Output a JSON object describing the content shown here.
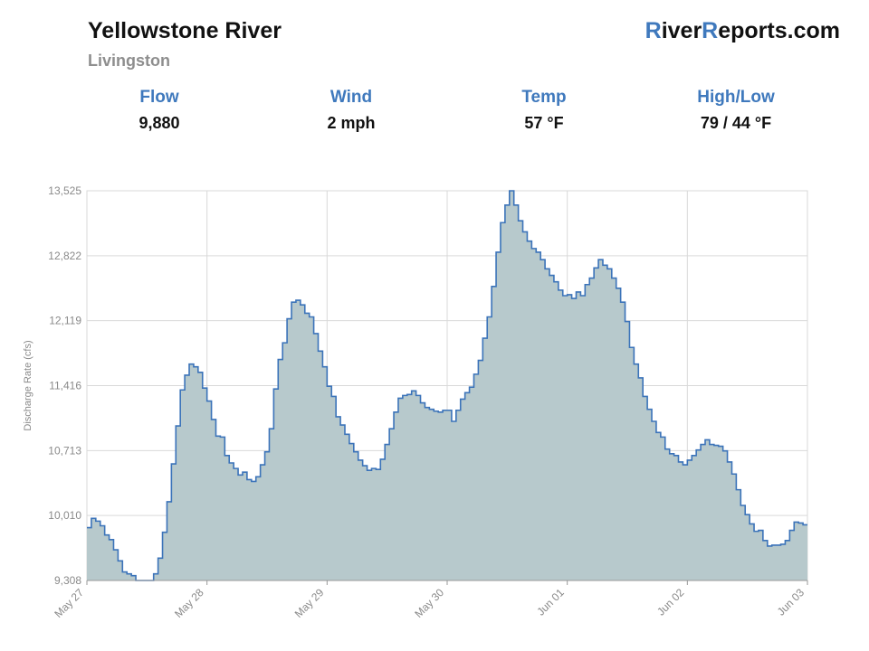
{
  "header": {
    "river": "Yellowstone River",
    "station": "Livingston",
    "brand_r1": "R",
    "brand_part1": "iver",
    "brand_r2": "R",
    "brand_part2": "eports.com"
  },
  "stats": [
    {
      "label": "Flow",
      "value": "9,880"
    },
    {
      "label": "Wind",
      "value": "2 mph"
    },
    {
      "label": "Temp",
      "value": "57 °F"
    },
    {
      "label": "High/Low",
      "value": "79 / 44 °F"
    }
  ],
  "colors": {
    "accent": "#3f79bd",
    "line": "#3b73b9",
    "fill": "#b7c9cc",
    "grid": "#d9d9d9",
    "axis_text": "#8a8a8a"
  },
  "chart_data": {
    "type": "area",
    "title": "",
    "xlabel": "",
    "ylabel": "Discharge Rate (cfs)",
    "step": true,
    "grid": true,
    "x_range": [
      "May 27",
      "Jun 03"
    ],
    "ylim": [
      9308,
      13525
    ],
    "y_ticks": [
      "9,308",
      "10,010",
      "10,713",
      "11,416",
      "12,119",
      "12,822",
      "13,525"
    ],
    "x_ticks": [
      "May 27",
      "May 28",
      "May 29",
      "May 30",
      "Jun 01",
      "Jun 02",
      "Jun 03"
    ],
    "series": [
      {
        "values": [
          9880,
          9980,
          9950,
          9900,
          9800,
          9750,
          9640,
          9520,
          9400,
          9380,
          9360,
          9308,
          9308,
          9308,
          9308,
          9380,
          9550,
          9830,
          10160,
          10570,
          10980,
          11370,
          11530,
          11650,
          11620,
          11560,
          11390,
          11250,
          11050,
          10870,
          10860,
          10660,
          10580,
          10520,
          10450,
          10480,
          10400,
          10380,
          10430,
          10560,
          10700,
          10950,
          11380,
          11700,
          11880,
          12140,
          12320,
          12340,
          12290,
          12200,
          12160,
          11980,
          11790,
          11620,
          11410,
          11300,
          11080,
          10990,
          10890,
          10790,
          10700,
          10610,
          10550,
          10500,
          10520,
          10510,
          10620,
          10780,
          10950,
          11130,
          11280,
          11310,
          11320,
          11360,
          11310,
          11230,
          11180,
          11160,
          11140,
          11130,
          11150,
          11150,
          11030,
          11150,
          11270,
          11340,
          11400,
          11540,
          11690,
          11930,
          12160,
          12490,
          12860,
          13180,
          13370,
          13525,
          13370,
          13200,
          13080,
          12980,
          12900,
          12860,
          12780,
          12680,
          12610,
          12540,
          12450,
          12390,
          12400,
          12360,
          12430,
          12390,
          12510,
          12580,
          12690,
          12780,
          12720,
          12680,
          12580,
          12470,
          12320,
          12110,
          11830,
          11650,
          11500,
          11300,
          11160,
          11030,
          10910,
          10860,
          10730,
          10680,
          10660,
          10590,
          10560,
          10610,
          10660,
          10720,
          10780,
          10830,
          10780,
          10770,
          10760,
          10710,
          10590,
          10460,
          10290,
          10120,
          10020,
          9920,
          9840,
          9850,
          9740,
          9680,
          9690,
          9690,
          9700,
          9740,
          9850,
          9940,
          9930,
          9910
        ]
      }
    ]
  }
}
